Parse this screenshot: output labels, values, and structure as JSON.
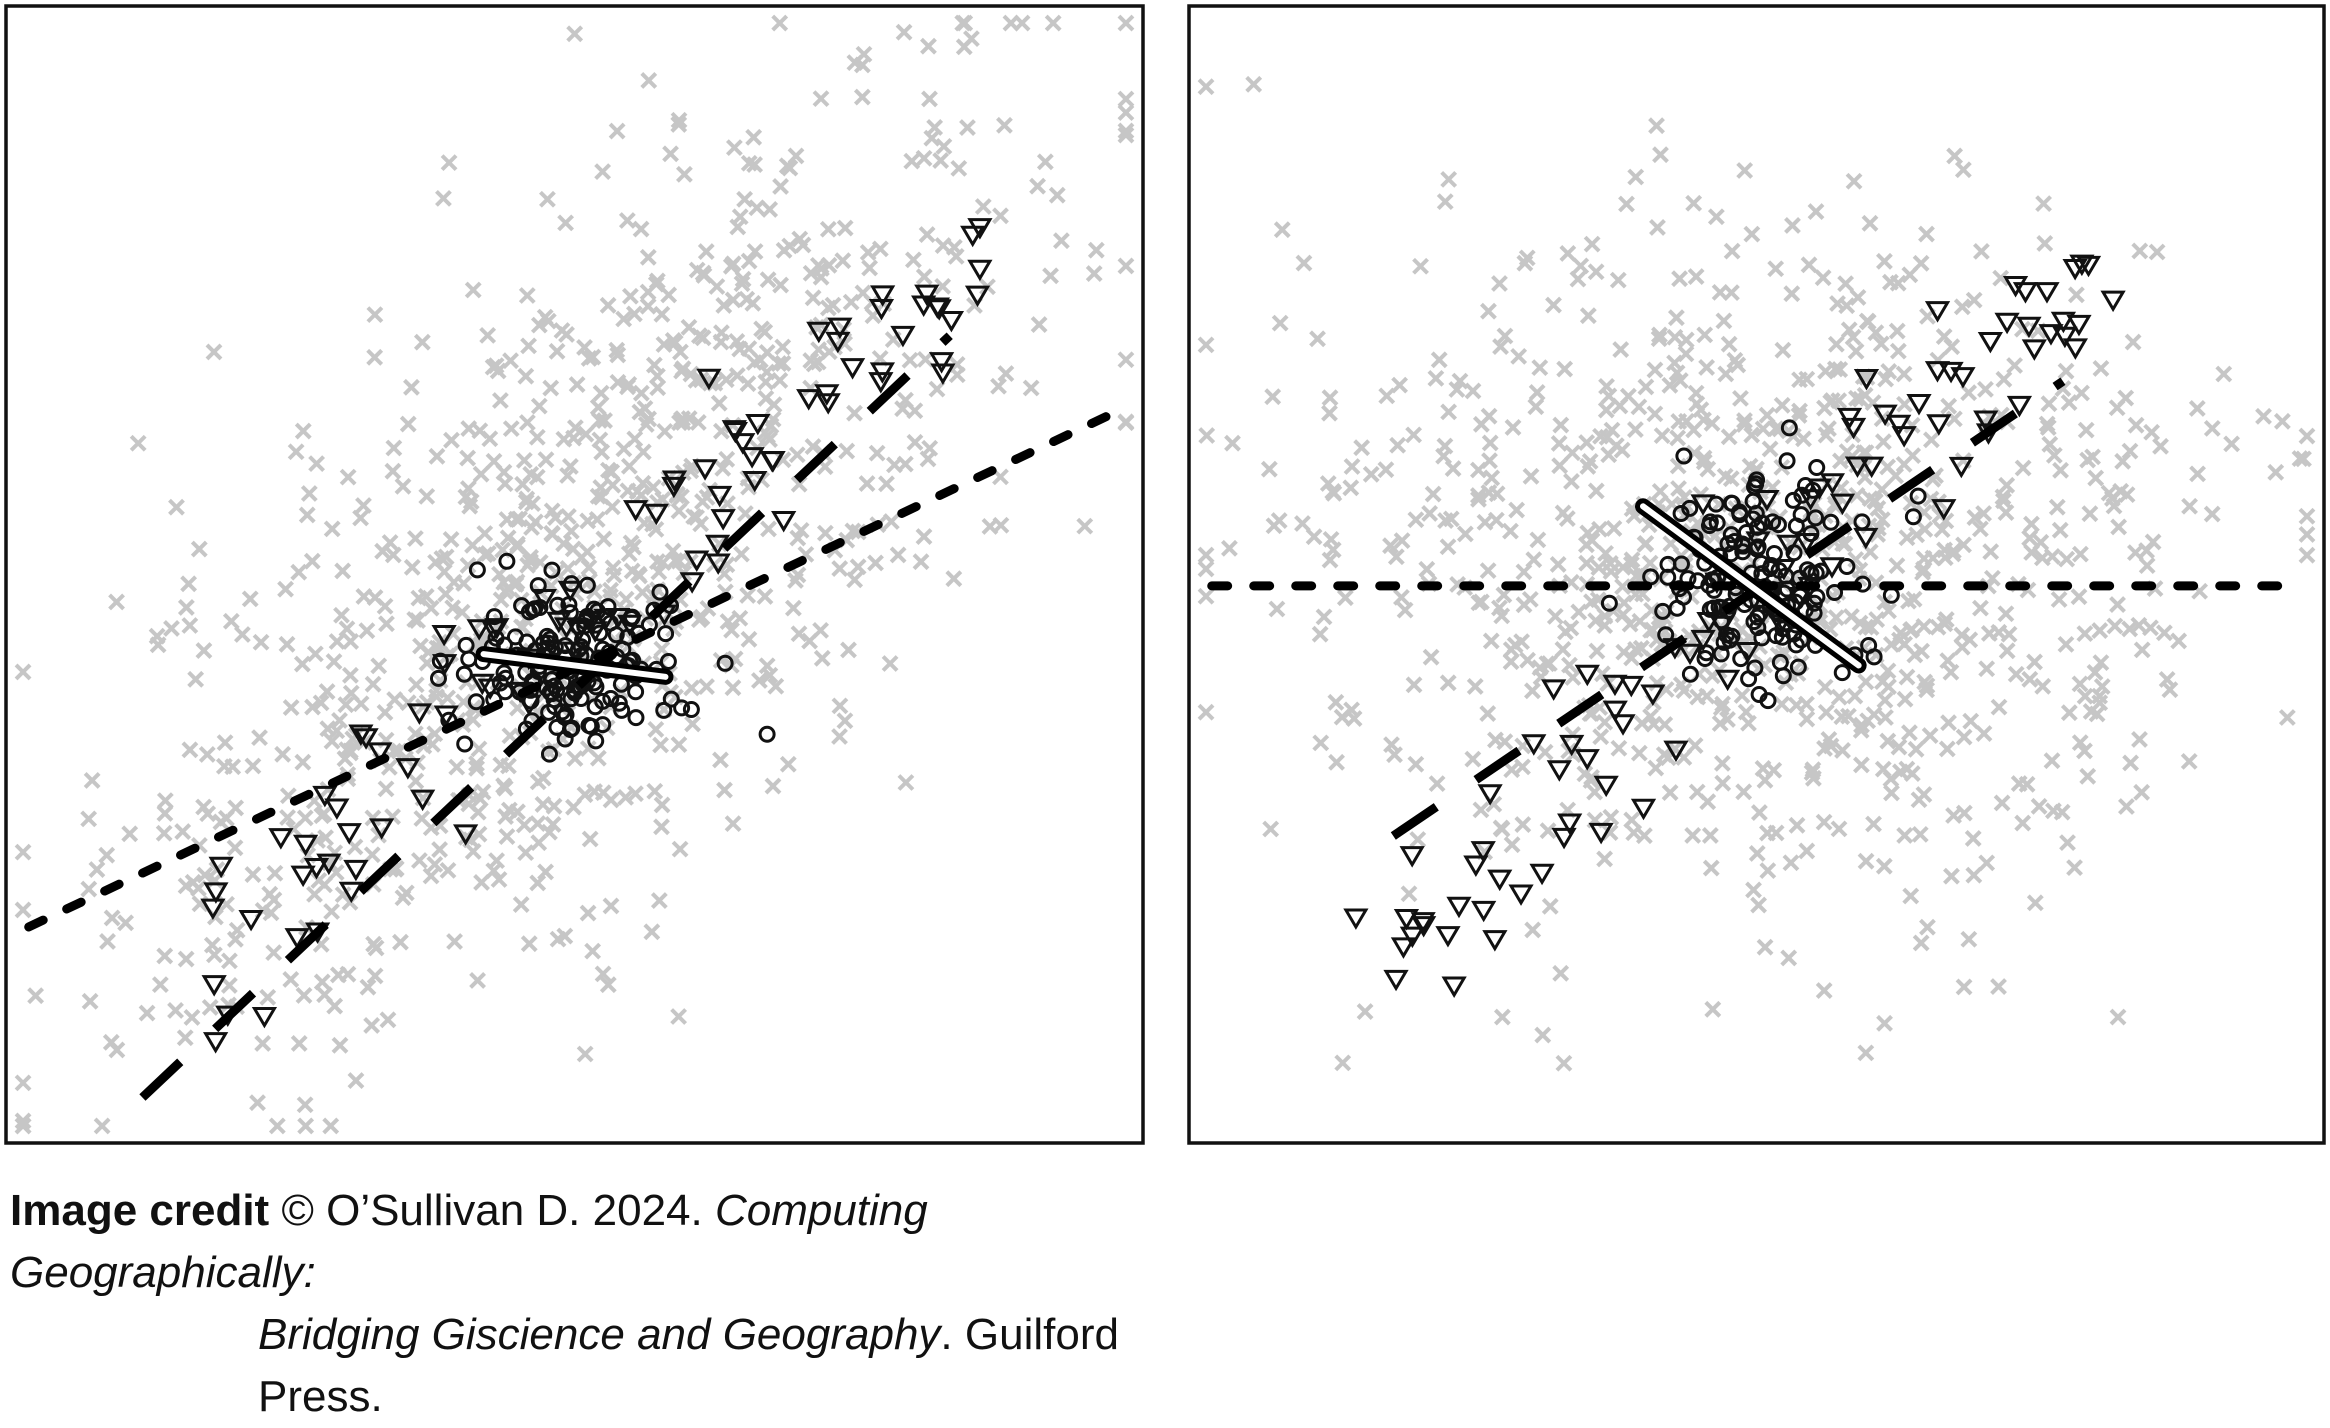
{
  "chart_data": [
    {
      "type": "scatter",
      "title": "",
      "xlabel": "",
      "ylabel": "",
      "xlim": [
        0,
        1
      ],
      "ylim": [
        0,
        1
      ],
      "grid": false,
      "axes_ticks": false,
      "groups": [
        {
          "marker": "x",
          "color": "#000000",
          "alpha": 0.22,
          "count": 900,
          "center": [
            0.5,
            0.5
          ],
          "trend_slope": 0.9
        },
        {
          "marker": "circle",
          "count": 150,
          "center": [
            0.5,
            0.42
          ],
          "spread": [
            0.05,
            0.035
          ]
        },
        {
          "marker": "triangle-down",
          "count": 95,
          "from": [
            0.15,
            0.14
          ],
          "to": [
            0.86,
            0.79
          ]
        }
      ],
      "fit_lines": [
        {
          "style": "dotted",
          "from": [
            0.02,
            0.19
          ],
          "to": [
            0.97,
            0.64
          ]
        },
        {
          "style": "dashed",
          "from": [
            0.12,
            0.04
          ],
          "to": [
            0.83,
            0.71
          ]
        },
        {
          "style": "solid-outlined",
          "from": [
            0.42,
            0.43
          ],
          "to": [
            0.58,
            0.41
          ]
        }
      ]
    },
    {
      "type": "scatter",
      "title": "",
      "xlabel": "",
      "ylabel": "",
      "xlim": [
        0,
        1
      ],
      "ylim": [
        0,
        1
      ],
      "grid": false,
      "axes_ticks": false,
      "groups": [
        {
          "marker": "x",
          "color": "#000000",
          "alpha": 0.22,
          "count": 900,
          "center": [
            0.5,
            0.5
          ],
          "trend_slope": 0.0
        },
        {
          "marker": "circle",
          "count": 150,
          "center": [
            0.5,
            0.5
          ],
          "spread": [
            0.05,
            0.05
          ]
        },
        {
          "marker": "triangle-down",
          "count": 95,
          "from": [
            0.18,
            0.15
          ],
          "to": [
            0.8,
            0.78
          ]
        }
      ],
      "fit_lines": [
        {
          "style": "dotted",
          "from": [
            0.02,
            0.49
          ],
          "to": [
            0.98,
            0.49
          ]
        },
        {
          "style": "dashed",
          "from": [
            0.18,
            0.27
          ],
          "to": [
            0.77,
            0.67
          ]
        },
        {
          "style": "solid-outlined",
          "from": [
            0.4,
            0.56
          ],
          "to": [
            0.59,
            0.42
          ]
        }
      ]
    }
  ],
  "caption": {
    "label": "Image credit",
    "line1_text": " © O’Sullivan D. 2024. ",
    "line1_italic": "Computing Geographically:",
    "line2_italic": "Bridging Giscience and Geography",
    "line2_text": ". Guilford Press."
  }
}
